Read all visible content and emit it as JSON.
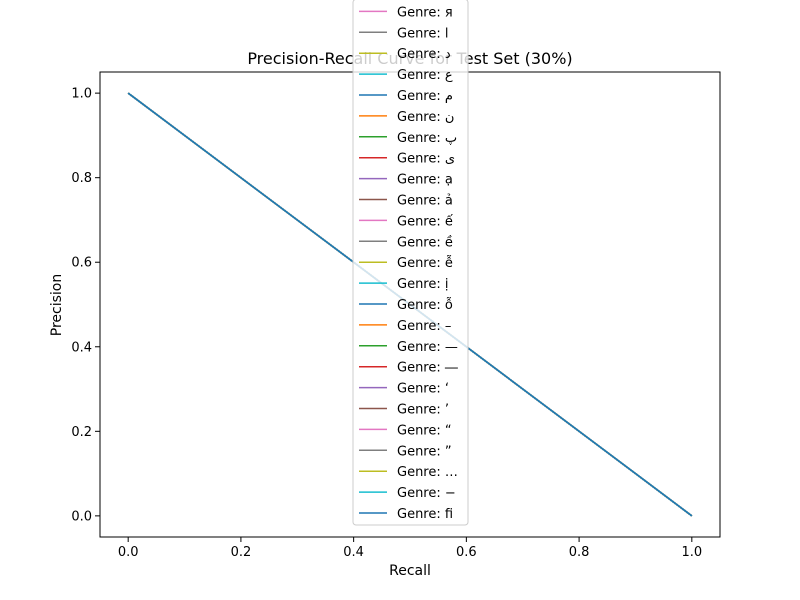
{
  "chart_data": {
    "type": "line",
    "title": "Precision-Recall Curve for Test Set (30%)",
    "xlabel": "Recall",
    "ylabel": "Precision",
    "xlim": [
      -0.05,
      1.05
    ],
    "ylim": [
      -0.05,
      1.05
    ],
    "xticks": [
      0.0,
      0.2,
      0.4,
      0.6,
      0.8,
      1.0
    ],
    "yticks": [
      0.0,
      0.2,
      0.4,
      0.6,
      0.8,
      1.0
    ],
    "xtick_labels": [
      "0.0",
      "0.2",
      "0.4",
      "0.6",
      "0.8",
      "1.0"
    ],
    "ytick_labels": [
      "0.0",
      "0.2",
      "0.4",
      "0.6",
      "0.8",
      "1.0"
    ],
    "grid": false,
    "legend_placement": "upper center",
    "series": [
      {
        "name": "Genre: я",
        "color": "#e377c2",
        "x": [
          0.0,
          1.0
        ],
        "y": [
          1.0,
          0.0
        ]
      },
      {
        "name": "Genre: l",
        "color": "#7f7f7f",
        "x": [
          0.0,
          1.0
        ],
        "y": [
          1.0,
          0.0
        ]
      },
      {
        "name": "Genre: د",
        "color": "#bcbd22",
        "x": [
          0.0,
          1.0
        ],
        "y": [
          1.0,
          0.0
        ]
      },
      {
        "name": "Genre: ع",
        "color": "#17becf",
        "x": [
          0.0,
          1.0
        ],
        "y": [
          1.0,
          0.0
        ]
      },
      {
        "name": "Genre: م",
        "color": "#1f77b4",
        "x": [
          0.0,
          1.0
        ],
        "y": [
          1.0,
          0.0
        ]
      },
      {
        "name": "Genre: ن",
        "color": "#ff7f0e",
        "x": [
          0.0,
          1.0
        ],
        "y": [
          1.0,
          0.0
        ]
      },
      {
        "name": "Genre: پ",
        "color": "#2ca02c",
        "x": [
          0.0,
          1.0
        ],
        "y": [
          1.0,
          0.0
        ]
      },
      {
        "name": "Genre: ی",
        "color": "#d62728",
        "x": [
          0.0,
          1.0
        ],
        "y": [
          1.0,
          0.0
        ]
      },
      {
        "name": "Genre: ạ",
        "color": "#9467bd",
        "x": [
          0.0,
          1.0
        ],
        "y": [
          1.0,
          0.0
        ]
      },
      {
        "name": "Genre: ả",
        "color": "#8c564b",
        "x": [
          0.0,
          1.0
        ],
        "y": [
          1.0,
          0.0
        ]
      },
      {
        "name": "Genre: ế",
        "color": "#e377c2",
        "x": [
          0.0,
          1.0
        ],
        "y": [
          1.0,
          0.0
        ]
      },
      {
        "name": "Genre: ề",
        "color": "#7f7f7f",
        "x": [
          0.0,
          1.0
        ],
        "y": [
          1.0,
          0.0
        ]
      },
      {
        "name": "Genre: ễ",
        "color": "#bcbd22",
        "x": [
          0.0,
          1.0
        ],
        "y": [
          1.0,
          0.0
        ]
      },
      {
        "name": "Genre: ị",
        "color": "#17becf",
        "x": [
          0.0,
          1.0
        ],
        "y": [
          1.0,
          0.0
        ]
      },
      {
        "name": "Genre: ỗ",
        "color": "#1f77b4",
        "x": [
          0.0,
          1.0
        ],
        "y": [
          1.0,
          0.0
        ]
      },
      {
        "name": "Genre: –",
        "color": "#ff7f0e",
        "x": [
          0.0,
          1.0
        ],
        "y": [
          1.0,
          0.0
        ]
      },
      {
        "name": "Genre: —",
        "color": "#2ca02c",
        "x": [
          0.0,
          1.0
        ],
        "y": [
          1.0,
          0.0
        ]
      },
      {
        "name": "Genre: ―",
        "color": "#d62728",
        "x": [
          0.0,
          1.0
        ],
        "y": [
          1.0,
          0.0
        ]
      },
      {
        "name": "Genre: ‘",
        "color": "#9467bd",
        "x": [
          0.0,
          1.0
        ],
        "y": [
          1.0,
          0.0
        ]
      },
      {
        "name": "Genre: ’",
        "color": "#8c564b",
        "x": [
          0.0,
          1.0
        ],
        "y": [
          1.0,
          0.0
        ]
      },
      {
        "name": "Genre: “",
        "color": "#e377c2",
        "x": [
          0.0,
          1.0
        ],
        "y": [
          1.0,
          0.0
        ]
      },
      {
        "name": "Genre: ”",
        "color": "#7f7f7f",
        "x": [
          0.0,
          1.0
        ],
        "y": [
          1.0,
          0.0
        ]
      },
      {
        "name": "Genre: …",
        "color": "#bcbd22",
        "x": [
          0.0,
          1.0
        ],
        "y": [
          1.0,
          0.0
        ]
      },
      {
        "name": "Genre: −",
        "color": "#17becf",
        "x": [
          0.0,
          1.0
        ],
        "y": [
          1.0,
          0.0
        ]
      },
      {
        "name": "Genre: ﬁ",
        "color": "#1f77b4",
        "x": [
          0.0,
          1.0
        ],
        "y": [
          1.0,
          0.0
        ]
      }
    ]
  }
}
